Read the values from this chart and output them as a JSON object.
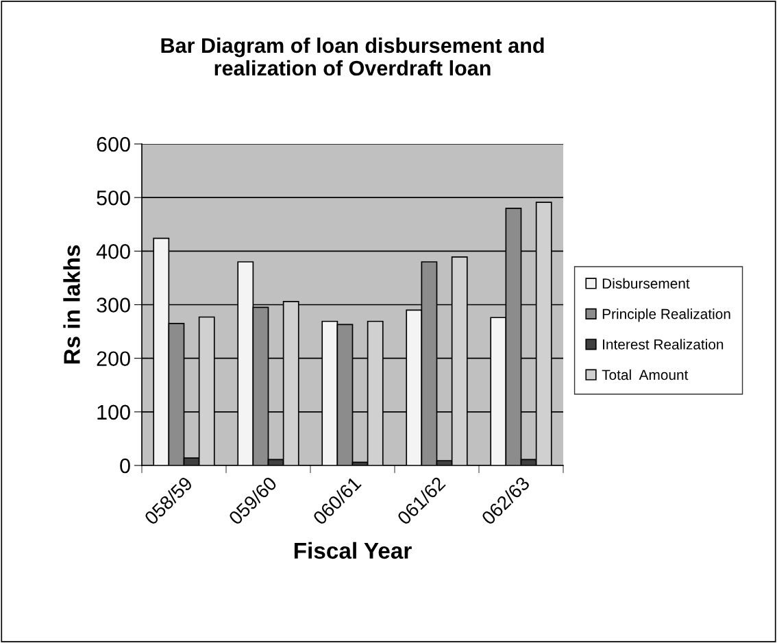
{
  "chart_data": {
    "type": "bar",
    "title": "Bar Diagram of loan disbursement and\nrealization of Overdraft loan",
    "xlabel": "Fiscal Year",
    "ylabel": "Rs in lakhs",
    "categories": [
      "058/59",
      "059/60",
      "060/61",
      "061/62",
      "062/63"
    ],
    "series": [
      {
        "name": "Disbursement",
        "color": "#f4f4f4",
        "values": [
          424,
          380,
          269,
          290,
          276
        ]
      },
      {
        "name": "Principle Realization",
        "color": "#8c8c8c",
        "values": [
          265,
          295,
          263,
          380,
          480
        ]
      },
      {
        "name": "Interest Realization",
        "color": "#404040",
        "values": [
          14,
          11,
          6,
          9,
          11
        ]
      },
      {
        "name": "Total  Amount",
        "color": "#d0d0d0",
        "values": [
          277,
          306,
          269,
          389,
          491
        ]
      }
    ],
    "ylim": [
      0,
      600
    ],
    "yticks": [
      0,
      100,
      200,
      300,
      400,
      500,
      600
    ],
    "grid": "y",
    "legend": "right"
  }
}
